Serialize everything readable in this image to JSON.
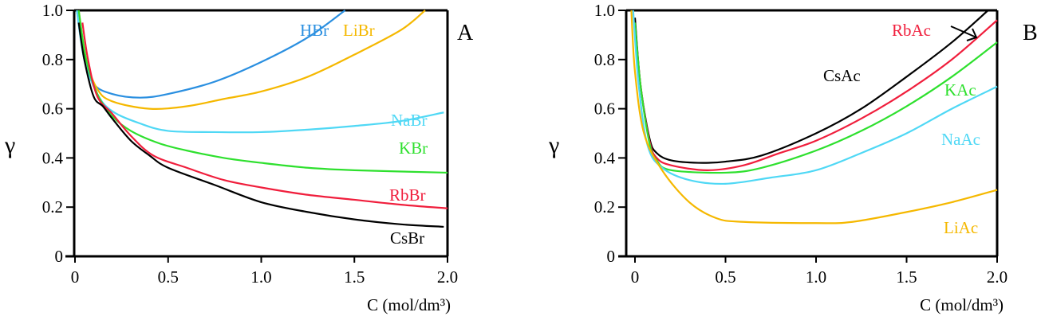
{
  "chart_data": [
    {
      "type": "line",
      "panel_label": "A",
      "xlabel": "C (mol/dm³)",
      "ylabel": "γ",
      "xlim": [
        0,
        2.0
      ],
      "ylim": [
        0,
        1.0
      ],
      "x_ticks": [
        "0",
        "0.5",
        "1.0",
        "1.5",
        "2.0"
      ],
      "y_ticks": [
        "0",
        "0.2",
        "0.4",
        "0.6",
        "0.8",
        "1.0"
      ],
      "grid": false,
      "legend": "inline labels",
      "series": [
        {
          "name": "HBr",
          "color": "#2a8fe0",
          "points": [
            [
              0.01,
              1.0
            ],
            [
              0.05,
              0.8
            ],
            [
              0.1,
              0.7
            ],
            [
              0.2,
              0.66
            ],
            [
              0.35,
              0.645
            ],
            [
              0.5,
              0.66
            ],
            [
              0.75,
              0.71
            ],
            [
              1.0,
              0.79
            ],
            [
              1.25,
              0.89
            ],
            [
              1.45,
              1.0
            ]
          ]
        },
        {
          "name": "LiBr",
          "color": "#f5b800",
          "points": [
            [
              0.02,
              1.0
            ],
            [
              0.06,
              0.8
            ],
            [
              0.12,
              0.68
            ],
            [
              0.2,
              0.63
            ],
            [
              0.4,
              0.6
            ],
            [
              0.6,
              0.61
            ],
            [
              0.8,
              0.64
            ],
            [
              1.0,
              0.67
            ],
            [
              1.25,
              0.73
            ],
            [
              1.5,
              0.82
            ],
            [
              1.75,
              0.92
            ],
            [
              1.88,
              1.0
            ]
          ]
        },
        {
          "name": "NaBr",
          "color": "#4fd8f5",
          "points": [
            [
              0.01,
              1.0
            ],
            [
              0.05,
              0.8
            ],
            [
              0.12,
              0.66
            ],
            [
              0.2,
              0.59
            ],
            [
              0.35,
              0.54
            ],
            [
              0.5,
              0.51
            ],
            [
              0.75,
              0.505
            ],
            [
              1.0,
              0.505
            ],
            [
              1.25,
              0.515
            ],
            [
              1.5,
              0.53
            ],
            [
              1.75,
              0.55
            ],
            [
              1.98,
              0.585
            ]
          ]
        },
        {
          "name": "KBr",
          "color": "#2ee02e",
          "points": [
            [
              0.02,
              1.0
            ],
            [
              0.06,
              0.8
            ],
            [
              0.12,
              0.66
            ],
            [
              0.2,
              0.57
            ],
            [
              0.3,
              0.51
            ],
            [
              0.45,
              0.46
            ],
            [
              0.6,
              0.43
            ],
            [
              0.8,
              0.4
            ],
            [
              1.0,
              0.38
            ],
            [
              1.25,
              0.36
            ],
            [
              1.5,
              0.35
            ],
            [
              2.0,
              0.34
            ]
          ]
        },
        {
          "name": "RbBr",
          "color": "#f01e3c",
          "points": [
            [
              0.04,
              0.95
            ],
            [
              0.07,
              0.8
            ],
            [
              0.12,
              0.65
            ],
            [
              0.2,
              0.58
            ],
            [
              0.3,
              0.49
            ],
            [
              0.42,
              0.41
            ],
            [
              0.6,
              0.36
            ],
            [
              0.8,
              0.31
            ],
            [
              1.0,
              0.28
            ],
            [
              1.25,
              0.25
            ],
            [
              1.5,
              0.23
            ],
            [
              1.75,
              0.21
            ],
            [
              2.0,
              0.195
            ]
          ]
        },
        {
          "name": "CsBr",
          "color": "#000000",
          "points": [
            [
              0.02,
              0.95
            ],
            [
              0.05,
              0.8
            ],
            [
              0.1,
              0.65
            ],
            [
              0.15,
              0.61
            ],
            [
              0.2,
              0.56
            ],
            [
              0.3,
              0.47
            ],
            [
              0.4,
              0.41
            ],
            [
              0.5,
              0.36
            ],
            [
              0.75,
              0.29
            ],
            [
              1.0,
              0.22
            ],
            [
              1.25,
              0.18
            ],
            [
              1.5,
              0.15
            ],
            [
              1.75,
              0.13
            ],
            [
              1.98,
              0.12
            ]
          ]
        }
      ]
    },
    {
      "type": "line",
      "panel_label": "B",
      "xlabel": "C (mol/dm³)",
      "ylabel": "γ",
      "xlim": [
        -0.05,
        2.0
      ],
      "ylim": [
        0,
        1.0
      ],
      "x_ticks": [
        "0",
        "0.5",
        "1.0",
        "1.5",
        "2.0"
      ],
      "y_ticks": [
        "0",
        "0.2",
        "0.4",
        "0.6",
        "0.8",
        "1.0"
      ],
      "grid": false,
      "legend": "inline labels",
      "annotation": "arrow from RbAc label to RbAc curve",
      "series": [
        {
          "name": "CsAc",
          "color": "#000000",
          "points": [
            [
              0.0,
              0.97
            ],
            [
              0.03,
              0.7
            ],
            [
              0.08,
              0.48
            ],
            [
              0.12,
              0.42
            ],
            [
              0.2,
              0.39
            ],
            [
              0.35,
              0.38
            ],
            [
              0.5,
              0.385
            ],
            [
              0.7,
              0.41
            ],
            [
              1.0,
              0.5
            ],
            [
              1.25,
              0.6
            ],
            [
              1.5,
              0.73
            ],
            [
              1.75,
              0.87
            ],
            [
              1.95,
              1.0
            ]
          ]
        },
        {
          "name": "RbAc",
          "color": "#f01e3c",
          "points": [
            [
              0.0,
              0.95
            ],
            [
              0.03,
              0.7
            ],
            [
              0.08,
              0.47
            ],
            [
              0.12,
              0.4
            ],
            [
              0.2,
              0.37
            ],
            [
              0.4,
              0.35
            ],
            [
              0.6,
              0.37
            ],
            [
              0.8,
              0.42
            ],
            [
              1.0,
              0.47
            ],
            [
              1.25,
              0.56
            ],
            [
              1.5,
              0.67
            ],
            [
              1.75,
              0.8
            ],
            [
              2.0,
              0.96
            ]
          ]
        },
        {
          "name": "KAc",
          "color": "#2ee02e",
          "points": [
            [
              0.0,
              0.95
            ],
            [
              0.03,
              0.7
            ],
            [
              0.08,
              0.46
            ],
            [
              0.12,
              0.39
            ],
            [
              0.2,
              0.35
            ],
            [
              0.5,
              0.34
            ],
            [
              0.7,
              0.36
            ],
            [
              1.0,
              0.43
            ],
            [
              1.25,
              0.51
            ],
            [
              1.5,
              0.61
            ],
            [
              1.75,
              0.73
            ],
            [
              2.0,
              0.87
            ]
          ]
        },
        {
          "name": "NaAc",
          "color": "#4fd8f5",
          "points": [
            [
              -0.01,
              1.0
            ],
            [
              0.02,
              0.7
            ],
            [
              0.07,
              0.45
            ],
            [
              0.15,
              0.36
            ],
            [
              0.3,
              0.31
            ],
            [
              0.5,
              0.295
            ],
            [
              0.75,
              0.32
            ],
            [
              1.0,
              0.35
            ],
            [
              1.25,
              0.42
            ],
            [
              1.5,
              0.5
            ],
            [
              1.75,
              0.6
            ],
            [
              2.0,
              0.69
            ]
          ]
        },
        {
          "name": "LiAc",
          "color": "#f5b800",
          "points": [
            [
              -0.02,
              1.0
            ],
            [
              0.0,
              0.75
            ],
            [
              0.05,
              0.5
            ],
            [
              0.15,
              0.35
            ],
            [
              0.3,
              0.22
            ],
            [
              0.45,
              0.155
            ],
            [
              0.6,
              0.14
            ],
            [
              1.0,
              0.135
            ],
            [
              1.2,
              0.14
            ],
            [
              1.5,
              0.18
            ],
            [
              1.75,
              0.22
            ],
            [
              2.0,
              0.27
            ]
          ]
        }
      ]
    }
  ]
}
